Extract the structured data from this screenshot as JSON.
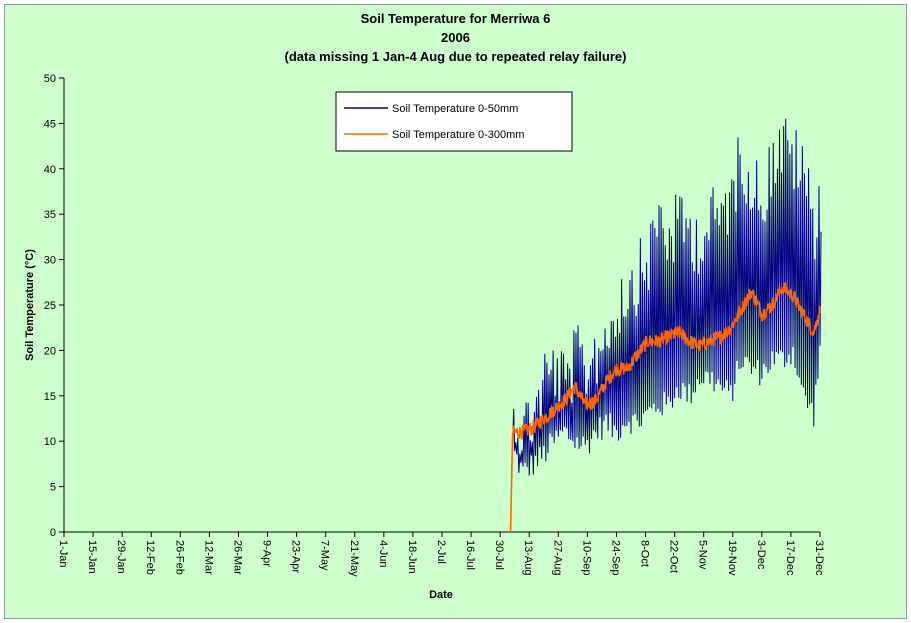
{
  "chart_data": {
    "type": "line",
    "title": "Soil Temperature for Merriwa 6",
    "subtitle": "2006",
    "note": "(data missing 1 Jan-4 Aug due to repeated relay failure)",
    "xlabel": "Date",
    "ylabel": "Soil Temperature (°C)",
    "xlim": [
      "1-Jan",
      "31-Dec"
    ],
    "ylim": [
      0,
      50
    ],
    "yticks": [
      0,
      5,
      10,
      15,
      20,
      25,
      30,
      35,
      40,
      45,
      50
    ],
    "xtick_labels": [
      "1-Jan",
      "15-Jan",
      "29-Jan",
      "12-Feb",
      "26-Feb",
      "12-Mar",
      "26-Mar",
      "9-Apr",
      "23-Apr",
      "7-May",
      "21-May",
      "4-Jun",
      "18-Jun",
      "2-Jul",
      "16-Jul",
      "30-Jul",
      "13-Aug",
      "27-Aug",
      "10-Sep",
      "24-Sep",
      "8-Oct",
      "22-Oct",
      "5-Nov",
      "19-Nov",
      "3-Dec",
      "17-Dec",
      "31-Dec"
    ],
    "grid": false,
    "legend_position": "top-center",
    "series": [
      {
        "name": "Soil Temperature 0-50mm",
        "color": "#000080",
        "daily_min": [
          [
            "5-Aug",
            9
          ],
          [
            "10-Aug",
            6.5
          ],
          [
            "15-Aug",
            7.5
          ],
          [
            "20-Aug",
            8.5
          ],
          [
            "25-Aug",
            10
          ],
          [
            "30-Aug",
            11
          ],
          [
            "4-Sep",
            10
          ],
          [
            "9-Sep",
            9.5
          ],
          [
            "14-Sep",
            11
          ],
          [
            "19-Sep",
            12
          ],
          [
            "24-Sep",
            11
          ],
          [
            "29-Sep",
            12.5
          ],
          [
            "4-Oct",
            12
          ],
          [
            "9-Oct",
            13
          ],
          [
            "14-Oct",
            14
          ],
          [
            "19-Oct",
            14
          ],
          [
            "24-Oct",
            16
          ],
          [
            "29-Oct",
            15
          ],
          [
            "3-Nov",
            17
          ],
          [
            "8-Nov",
            17
          ],
          [
            "13-Nov",
            16
          ],
          [
            "18-Nov",
            15
          ],
          [
            "23-Nov",
            19
          ],
          [
            "28-Nov",
            18
          ],
          [
            "3-Dec",
            17.5
          ],
          [
            "8-Dec",
            19
          ],
          [
            "13-Dec",
            19
          ],
          [
            "18-Dec",
            20
          ],
          [
            "23-Dec",
            15
          ],
          [
            "28-Dec",
            13
          ],
          [
            "31-Dec",
            20
          ]
        ],
        "daily_max": [
          [
            "5-Aug",
            16
          ],
          [
            "10-Aug",
            15.5
          ],
          [
            "15-Aug",
            17
          ],
          [
            "20-Aug",
            21
          ],
          [
            "25-Aug",
            22
          ],
          [
            "30-Aug",
            20
          ],
          [
            "4-Sep",
            23
          ],
          [
            "9-Sep",
            22
          ],
          [
            "14-Sep",
            24
          ],
          [
            "19-Sep",
            26
          ],
          [
            "24-Sep",
            29
          ],
          [
            "29-Sep",
            31
          ],
          [
            "4-Oct",
            32
          ],
          [
            "9-Oct",
            34
          ],
          [
            "14-Oct",
            39
          ],
          [
            "19-Oct",
            36
          ],
          [
            "24-Oct",
            38
          ],
          [
            "29-Oct",
            37
          ],
          [
            "3-Nov",
            36
          ],
          [
            "8-Nov",
            38
          ],
          [
            "13-Nov",
            39
          ],
          [
            "18-Nov",
            41
          ],
          [
            "23-Nov",
            45.5
          ],
          [
            "28-Nov",
            42
          ],
          [
            "3-Dec",
            41
          ],
          [
            "8-Dec",
            45
          ],
          [
            "13-Dec",
            46.5
          ],
          [
            "18-Dec",
            45
          ],
          [
            "23-Dec",
            43
          ],
          [
            "28-Dec",
            38
          ],
          [
            "31-Dec",
            40.5
          ]
        ]
      },
      {
        "name": "Soil Temperature  0-300mm",
        "color": "#ff6600",
        "values": [
          [
            "4-Aug",
            0
          ],
          [
            "5-Aug",
            11
          ],
          [
            "10-Aug",
            11
          ],
          [
            "15-Aug",
            11.5
          ],
          [
            "20-Aug",
            12.5
          ],
          [
            "25-Aug",
            13.5
          ],
          [
            "30-Aug",
            14.5
          ],
          [
            "4-Sep",
            16
          ],
          [
            "9-Sep",
            14
          ],
          [
            "14-Sep",
            14.5
          ],
          [
            "19-Sep",
            16.5
          ],
          [
            "24-Sep",
            18
          ],
          [
            "29-Sep",
            18
          ],
          [
            "4-Oct",
            19.5
          ],
          [
            "9-Oct",
            21
          ],
          [
            "14-Oct",
            21
          ],
          [
            "19-Oct",
            21.5
          ],
          [
            "24-Oct",
            22
          ],
          [
            "29-Oct",
            21
          ],
          [
            "3-Nov",
            20.5
          ],
          [
            "8-Nov",
            21
          ],
          [
            "13-Nov",
            21.5
          ],
          [
            "18-Nov",
            22.5
          ],
          [
            "23-Nov",
            24.5
          ],
          [
            "28-Nov",
            26.5
          ],
          [
            "3-Dec",
            24
          ],
          [
            "8-Dec",
            25
          ],
          [
            "13-Dec",
            27
          ],
          [
            "18-Dec",
            26
          ],
          [
            "23-Dec",
            24
          ],
          [
            "28-Dec",
            22
          ],
          [
            "31-Dec",
            24.5
          ]
        ]
      }
    ]
  }
}
